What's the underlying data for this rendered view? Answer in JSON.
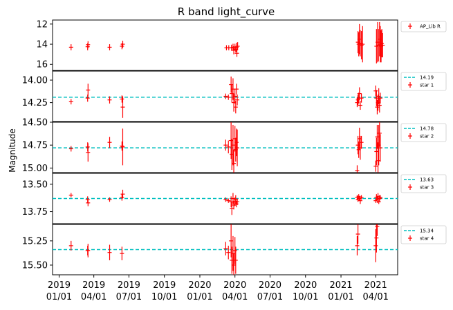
{
  "chart_data": {
    "type": "scatter",
    "title": "R band light_curve",
    "ylabel": "Magnitude",
    "y_inverted": true,
    "x_axis": {
      "type": "date",
      "range": [
        "2018-12-15",
        "2021-05-28"
      ],
      "ticks": [
        {
          "date": "2019-01-01",
          "label": [
            "2019",
            "01/01"
          ]
        },
        {
          "date": "2019-04-01",
          "label": [
            "2019",
            "04/01"
          ]
        },
        {
          "date": "2019-07-01",
          "label": [
            "2019",
            "07/01"
          ]
        },
        {
          "date": "2019-10-01",
          "label": [
            "2019",
            "10/01"
          ]
        },
        {
          "date": "2020-01-01",
          "label": [
            "2020",
            "01/01"
          ]
        },
        {
          "date": "2020-04-01",
          "label": [
            "2020",
            "04/01"
          ]
        },
        {
          "date": "2020-07-01",
          "label": [
            "2020",
            "07/01"
          ]
        },
        {
          "date": "2020-10-01",
          "label": [
            "2020",
            "10/01"
          ]
        },
        {
          "date": "2021-01-01",
          "label": [
            "2021",
            "01/01"
          ]
        },
        {
          "date": "2021-04-01",
          "label": [
            "2021",
            "04/01"
          ]
        }
      ]
    },
    "colors": {
      "points": "#ff0000",
      "reference": "#00bfbf",
      "frame": "#000000"
    },
    "panels": [
      {
        "id": "ap-lib",
        "ylim": [
          16.6,
          11.6
        ],
        "yticks": [
          12,
          14,
          16
        ],
        "ytick_labels": [
          "12",
          "14",
          "16"
        ],
        "legend": [
          {
            "kind": "errorbar",
            "label": "AP_Lib R"
          }
        ],
        "reference": null,
        "points": [
          [
            "2019-02-01",
            14.3,
            0.3
          ],
          [
            "2019-03-16",
            14.25,
            0.35
          ],
          [
            "2019-03-17",
            14.05,
            0.35
          ],
          [
            "2019-05-12",
            14.3,
            0.3
          ],
          [
            "2019-06-13",
            14.2,
            0.3
          ],
          [
            "2019-06-15",
            14.0,
            0.35
          ],
          [
            "2020-03-10",
            14.35,
            0.25
          ],
          [
            "2020-03-16",
            14.35,
            0.25
          ],
          [
            "2020-03-23",
            14.35,
            0.3
          ],
          [
            "2020-03-27",
            14.3,
            0.35
          ],
          [
            "2020-03-29",
            14.6,
            0.4
          ],
          [
            "2020-04-01",
            14.3,
            0.35
          ],
          [
            "2020-04-03",
            14.5,
            0.3
          ],
          [
            "2020-04-05",
            14.3,
            0.45
          ],
          [
            "2020-04-06",
            14.9,
            0.35
          ],
          [
            "2020-04-08",
            14.2,
            0.4
          ],
          [
            "2021-02-14",
            13.8,
            1.1
          ],
          [
            "2021-02-16",
            14.0,
            1.2
          ],
          [
            "2021-02-18",
            13.5,
            1.5
          ],
          [
            "2021-02-20",
            13.9,
            1.3
          ],
          [
            "2021-02-23",
            14.1,
            1.4
          ],
          [
            "2021-02-26",
            14.0,
            1.8
          ],
          [
            "2021-04-03",
            14.2,
            1.7
          ],
          [
            "2021-04-06",
            13.8,
            2.0
          ],
          [
            "2021-04-08",
            14.1,
            1.6
          ],
          [
            "2021-04-11",
            13.5,
            1.7
          ],
          [
            "2021-04-13",
            14.0,
            1.8
          ],
          [
            "2021-04-15",
            14.2,
            1.6
          ],
          [
            "2021-04-17",
            13.9,
            1.4
          ],
          [
            "2021-04-19",
            14.1,
            1.2
          ]
        ]
      },
      {
        "id": "star1",
        "ylim": [
          14.46,
          13.9
        ],
        "yticks": [
          14.0,
          14.25
        ],
        "ytick_labels": [
          "14.00",
          "14.25"
        ],
        "legend": [
          {
            "kind": "dashed",
            "label": "14.19"
          },
          {
            "kind": "errorbar",
            "label": "star 1"
          }
        ],
        "reference": 14.19,
        "points": [
          [
            "2019-02-01",
            14.24,
            0.03
          ],
          [
            "2019-03-16",
            14.2,
            0.04
          ],
          [
            "2019-03-17",
            14.11,
            0.07
          ],
          [
            "2019-05-12",
            14.22,
            0.04
          ],
          [
            "2019-06-13",
            14.21,
            0.04
          ],
          [
            "2019-06-15",
            14.3,
            0.12
          ],
          [
            "2020-03-08",
            14.18,
            0.03
          ],
          [
            "2020-03-15",
            14.19,
            0.03
          ],
          [
            "2020-03-22",
            14.05,
            0.09
          ],
          [
            "2020-03-24",
            14.15,
            0.1
          ],
          [
            "2020-03-27",
            14.1,
            0.12
          ],
          [
            "2020-03-29",
            14.25,
            0.1
          ],
          [
            "2020-04-01",
            14.18,
            0.08
          ],
          [
            "2020-04-03",
            14.3,
            0.07
          ],
          [
            "2020-04-05",
            14.1,
            0.06
          ],
          [
            "2020-04-07",
            14.22,
            0.06
          ],
          [
            "2021-02-12",
            14.25,
            0.05
          ],
          [
            "2021-02-14",
            14.22,
            0.06
          ],
          [
            "2021-02-16",
            14.2,
            0.06
          ],
          [
            "2021-02-18",
            14.15,
            0.07
          ],
          [
            "2021-02-20",
            14.28,
            0.05
          ],
          [
            "2021-02-23",
            14.2,
            0.05
          ],
          [
            "2021-04-01",
            14.12,
            0.06
          ],
          [
            "2021-04-03",
            14.2,
            0.09
          ],
          [
            "2021-04-05",
            14.3,
            0.08
          ],
          [
            "2021-04-07",
            14.25,
            0.09
          ],
          [
            "2021-04-09",
            14.18,
            0.09
          ],
          [
            "2021-04-11",
            14.28,
            0.08
          ],
          [
            "2021-04-13",
            14.2,
            0.06
          ]
        ]
      },
      {
        "id": "star2",
        "ylim": [
          15.05,
          14.5
        ],
        "yticks": [
          14.5,
          14.75,
          15.0
        ],
        "ytick_labels": [
          "14.50",
          "14.75",
          "15.00"
        ],
        "legend": [
          {
            "kind": "dashed",
            "label": "14.78"
          },
          {
            "kind": "errorbar",
            "label": "star 2"
          }
        ],
        "reference": 14.78,
        "points": [
          [
            "2019-02-01",
            14.79,
            0.03
          ],
          [
            "2019-03-16",
            14.77,
            0.05
          ],
          [
            "2019-03-17",
            14.83,
            0.1
          ],
          [
            "2019-05-12",
            14.72,
            0.06
          ],
          [
            "2019-06-13",
            14.76,
            0.05
          ],
          [
            "2019-06-15",
            14.77,
            0.2
          ],
          [
            "2020-03-08",
            14.75,
            0.06
          ],
          [
            "2020-03-15",
            14.77,
            0.07
          ],
          [
            "2020-03-22",
            14.7,
            0.2
          ],
          [
            "2020-03-24",
            14.85,
            0.17
          ],
          [
            "2020-03-27",
            14.75,
            0.22
          ],
          [
            "2020-03-29",
            14.95,
            0.15
          ],
          [
            "2020-04-01",
            14.68,
            0.14
          ],
          [
            "2020-04-03",
            14.8,
            0.13
          ],
          [
            "2020-04-05",
            14.72,
            0.15
          ],
          [
            "2020-04-07",
            14.78,
            0.2
          ],
          [
            "2021-02-12",
            15.03,
            0.06
          ],
          [
            "2021-02-14",
            14.75,
            0.1
          ],
          [
            "2021-02-16",
            14.8,
            0.09
          ],
          [
            "2021-02-18",
            14.68,
            0.12
          ],
          [
            "2021-02-20",
            14.78,
            0.13
          ],
          [
            "2021-02-23",
            14.72,
            0.07
          ],
          [
            "2021-04-01",
            14.98,
            0.06
          ],
          [
            "2021-04-03",
            14.82,
            0.15
          ],
          [
            "2021-04-05",
            14.66,
            0.13
          ],
          [
            "2021-04-07",
            14.92,
            0.2
          ],
          [
            "2021-04-09",
            14.75,
            0.22
          ],
          [
            "2021-04-11",
            14.62,
            0.15
          ],
          [
            "2021-04-13",
            14.78,
            0.15
          ]
        ]
      },
      {
        "id": "star3",
        "ylim": [
          13.86,
          13.4
        ],
        "yticks": [
          13.5,
          13.75
        ],
        "ytick_labels": [
          "13.50",
          "13.75"
        ],
        "legend": [
          {
            "kind": "dashed",
            "label": "13.63"
          },
          {
            "kind": "errorbar",
            "label": "star 3"
          }
        ],
        "reference": 13.63,
        "points": [
          [
            "2019-02-01",
            13.6,
            0.02
          ],
          [
            "2019-03-16",
            13.64,
            0.03
          ],
          [
            "2019-03-17",
            13.67,
            0.03
          ],
          [
            "2019-05-12",
            13.64,
            0.02
          ],
          [
            "2019-06-13",
            13.62,
            0.03
          ],
          [
            "2019-06-15",
            13.59,
            0.04
          ],
          [
            "2020-03-08",
            13.64,
            0.02
          ],
          [
            "2020-03-15",
            13.65,
            0.02
          ],
          [
            "2020-03-22",
            13.66,
            0.05
          ],
          [
            "2020-03-24",
            13.72,
            0.06
          ],
          [
            "2020-03-27",
            13.63,
            0.05
          ],
          [
            "2020-03-29",
            13.69,
            0.04
          ],
          [
            "2020-04-01",
            13.66,
            0.04
          ],
          [
            "2020-04-03",
            13.64,
            0.04
          ],
          [
            "2020-04-05",
            13.68,
            0.03
          ],
          [
            "2020-04-07",
            13.66,
            0.03
          ],
          [
            "2021-02-12",
            13.62,
            0.02
          ],
          [
            "2021-02-14",
            13.64,
            0.02
          ],
          [
            "2021-02-16",
            13.61,
            0.02
          ],
          [
            "2021-02-18",
            13.63,
            0.02
          ],
          [
            "2021-02-20",
            13.65,
            0.03
          ],
          [
            "2021-02-23",
            13.62,
            0.02
          ],
          [
            "2021-04-01",
            13.65,
            0.02
          ],
          [
            "2021-04-03",
            13.62,
            0.03
          ],
          [
            "2021-04-05",
            13.64,
            0.03
          ],
          [
            "2021-04-07",
            13.61,
            0.03
          ],
          [
            "2021-04-09",
            13.66,
            0.02
          ],
          [
            "2021-04-11",
            13.63,
            0.03
          ],
          [
            "2021-04-13",
            13.62,
            0.02
          ]
        ]
      },
      {
        "id": "star4",
        "ylim": [
          15.6,
          15.08
        ],
        "yticks": [
          15.25,
          15.5
        ],
        "ytick_labels": [
          "15.25",
          "15.50"
        ],
        "legend": [
          {
            "kind": "dashed",
            "label": "15.34"
          },
          {
            "kind": "errorbar",
            "label": "star 4"
          }
        ],
        "reference": 15.34,
        "points": [
          [
            "2019-02-01",
            15.3,
            0.05
          ],
          [
            "2019-03-16",
            15.35,
            0.05
          ],
          [
            "2019-03-17",
            15.35,
            0.07
          ],
          [
            "2019-05-12",
            15.37,
            0.08
          ],
          [
            "2019-06-13",
            15.38,
            0.07
          ],
          [
            "2020-03-08",
            15.33,
            0.07
          ],
          [
            "2020-03-15",
            15.37,
            0.07
          ],
          [
            "2020-03-22",
            15.25,
            0.17
          ],
          [
            "2020-03-24",
            15.45,
            0.14
          ],
          [
            "2020-03-27",
            15.38,
            0.18
          ],
          [
            "2020-03-29",
            15.5,
            0.12
          ],
          [
            "2020-04-01",
            15.35,
            0.14
          ],
          [
            "2020-04-03",
            15.45,
            0.14
          ],
          [
            "2021-02-12",
            15.3,
            0.1
          ],
          [
            "2021-02-14",
            15.18,
            0.1
          ],
          [
            "2021-04-01",
            15.3,
            0.17
          ],
          [
            "2021-04-03",
            15.22,
            0.15
          ],
          [
            "2021-04-05",
            15.1,
            0.1
          ]
        ]
      }
    ]
  }
}
